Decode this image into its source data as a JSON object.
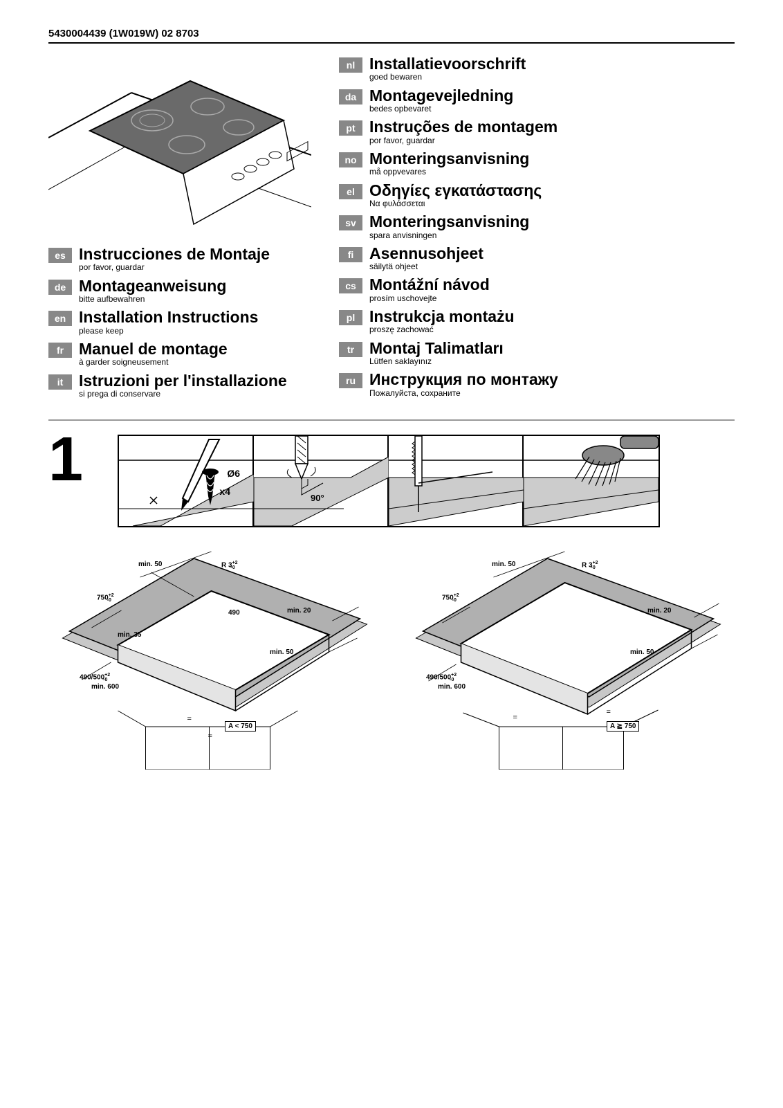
{
  "doc_id": "5430004439 (1W019W) 02  8703",
  "left_langs": [
    {
      "code": "es",
      "title": "Instrucciones de Montaje",
      "sub": "por favor, guardar"
    },
    {
      "code": "de",
      "title": "Montageanweisung",
      "sub": "bitte aufbewahren"
    },
    {
      "code": "en",
      "title": "Installation Instructions",
      "sub": "please keep"
    },
    {
      "code": "fr",
      "title": "Manuel de montage",
      "sub": "à garder soigneusement"
    },
    {
      "code": "it",
      "title": "Istruzioni per l'installazione",
      "sub": "si prega di conservare"
    }
  ],
  "right_langs": [
    {
      "code": "nl",
      "title": "Installatievoorschrift",
      "sub": "goed bewaren"
    },
    {
      "code": "da",
      "title": "Montagevejledning",
      "sub": "bedes opbevaret"
    },
    {
      "code": "pt",
      "title": "Instruções de montagem",
      "sub": "por favor, guardar"
    },
    {
      "code": "no",
      "title": "Monteringsanvisning",
      "sub": "må oppvevares"
    },
    {
      "code": "el",
      "title": "Οδηγίες  εγκατάστασης",
      "sub": "Να φυλάσσεται"
    },
    {
      "code": "sv",
      "title": "Monteringsanvisning",
      "sub": "spara anvisningen"
    },
    {
      "code": "fi",
      "title": "Asennusohjeet",
      "sub": "säilytä ohjeet"
    },
    {
      "code": "cs",
      "title": "Montážní návod",
      "sub": "prosím uschovejte"
    },
    {
      "code": "pl",
      "title": "Instrukcja montażu",
      "sub": "proszę zachować"
    },
    {
      "code": "tr",
      "title": "Montaj Talimatları",
      "sub": "Lütfen saklayınız"
    },
    {
      "code": "ru",
      "title": "Инструкция по монтажу",
      "sub": "Пожалуйста, сохраните"
    }
  ],
  "step": {
    "number": "1",
    "drill_dia": "Ø6",
    "drill_qty": "x4",
    "angle": "90°"
  },
  "dim_left": {
    "min50_top": "min. 50",
    "r3": "R 3",
    "tol": "+2\n-0",
    "w750": "750",
    "w490": "490",
    "min20": "min. 20",
    "min35": "min. 35",
    "min50_side": "min. 50",
    "h490_500": "490/500",
    "min600": "min. 600",
    "a": "A < 750"
  },
  "dim_right": {
    "min50_top": "min. 50",
    "r3": "R 3",
    "tol": "+2\n-0",
    "w750": "750",
    "min20": "min. 20",
    "min50_side": "min. 50",
    "h490_500": "490/500",
    "min600": "min. 600",
    "a": "A ≧ 750"
  },
  "colors": {
    "badge_bg": "#888888",
    "sep": "#999999",
    "hob_fill": "#6a6a6a"
  }
}
